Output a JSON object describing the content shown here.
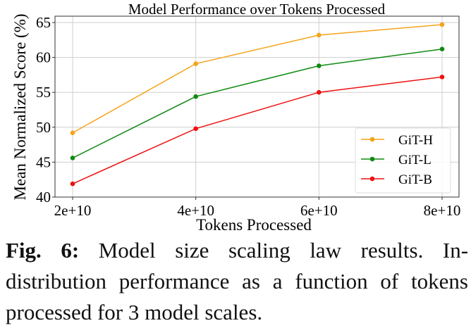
{
  "chart_data": {
    "type": "line",
    "title": "Model Performance over Tokens Processed",
    "xlabel": "Tokens Processed",
    "ylabel": "Mean Normalized Score (%)",
    "x": [
      20000000000.0,
      40000000000.0,
      60000000000.0,
      80000000000.0
    ],
    "x_tick_labels": [
      "2e+10",
      "4e+10",
      "6e+10",
      "8e+10"
    ],
    "y_ticks": [
      40,
      45,
      50,
      55,
      60,
      65
    ],
    "xlim": [
      20000000000.0,
      80000000000.0
    ],
    "ylim": [
      40,
      65
    ],
    "grid": true,
    "legend_position": "lower-right",
    "series": [
      {
        "name": "GiT-H",
        "color": "#f5a31a",
        "values": [
          49.2,
          59.1,
          63.2,
          64.7
        ]
      },
      {
        "name": "GiT-L",
        "color": "#118a11",
        "values": [
          45.6,
          54.4,
          58.8,
          61.2
        ]
      },
      {
        "name": "GiT-B",
        "color": "#ee1111",
        "values": [
          41.9,
          49.8,
          55.0,
          57.2
        ]
      }
    ]
  },
  "caption": {
    "label": "Fig. 6:",
    "text": "Model size scaling law results. In-distribution performance as a function of tokens processed for 3 model scales."
  }
}
